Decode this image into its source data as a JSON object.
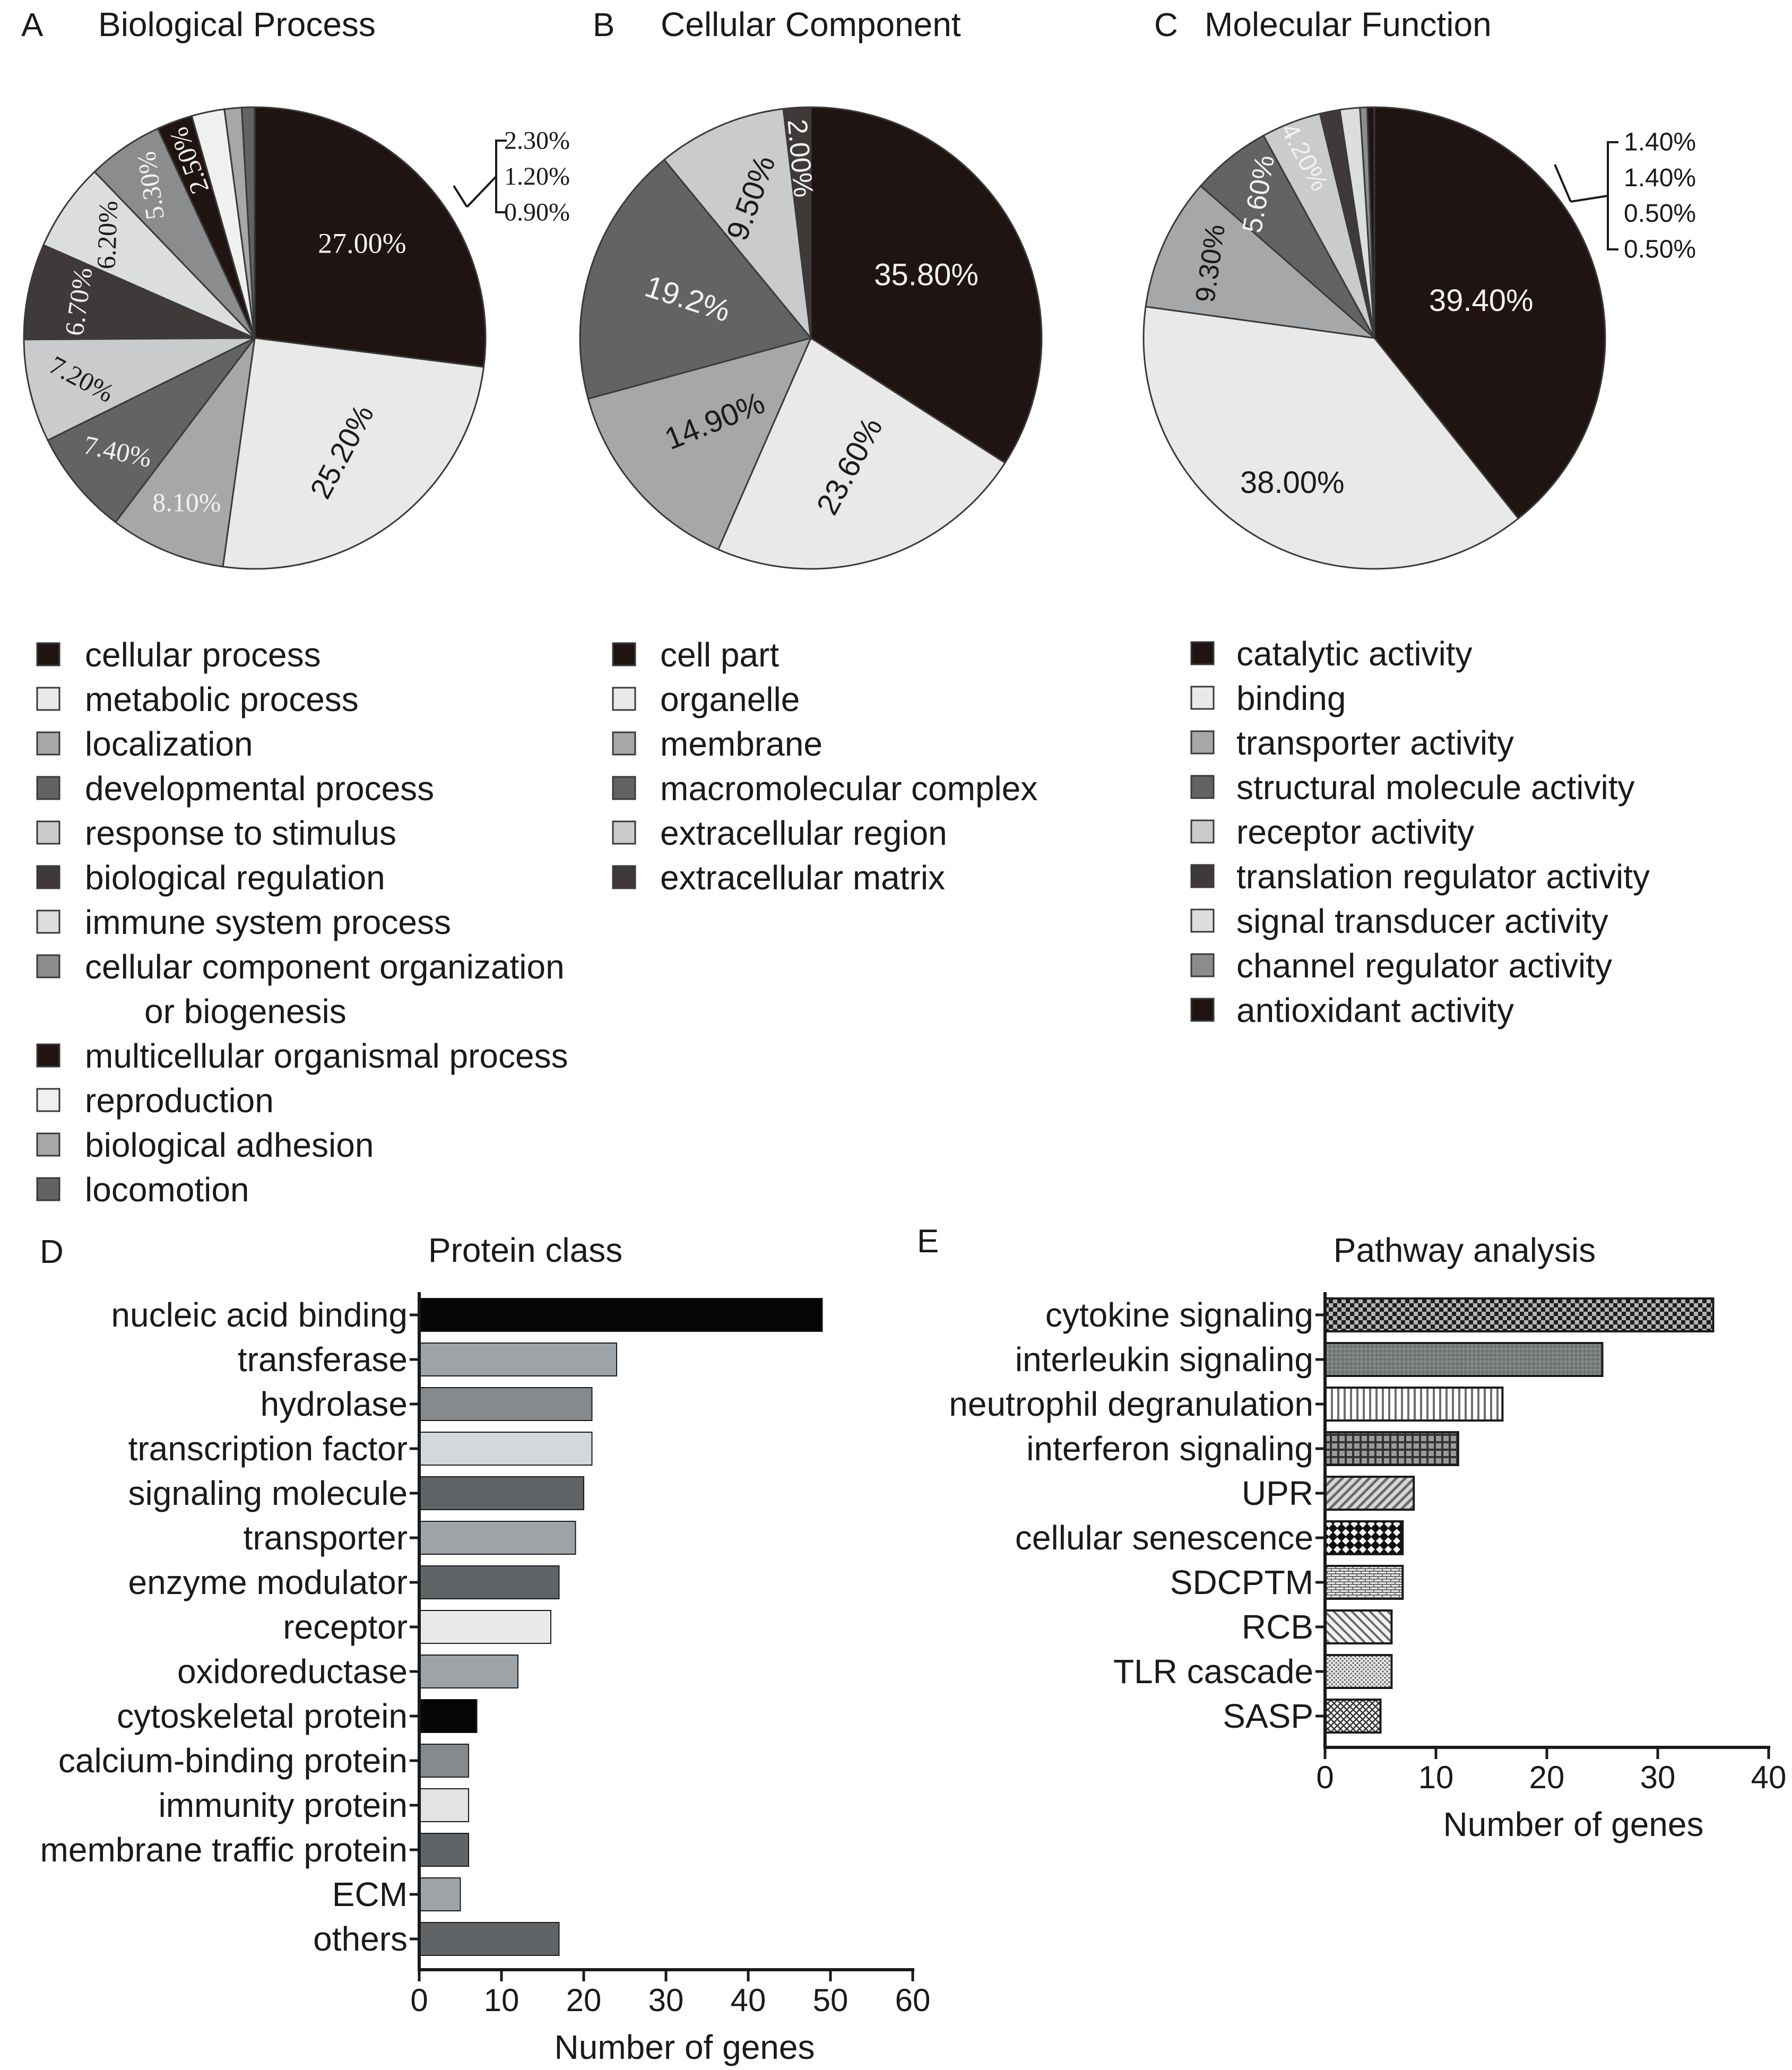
{
  "chart_data": [
    {
      "id": "A",
      "panel_label": "A",
      "type": "pie",
      "title": "Biological Process",
      "slices": [
        {
          "label": "cellular process",
          "value": 27.0,
          "text": "27.00%",
          "color": "#1f1411"
        },
        {
          "label": "metabolic process",
          "value": 25.2,
          "text": "25.20%",
          "color": "#e9e9ea"
        },
        {
          "label": "localization",
          "value": 8.1,
          "text": "8.10%",
          "color": "#a5a7a8"
        },
        {
          "label": "developmental process",
          "value": 7.4,
          "text": "7.40%",
          "color": "#616364"
        },
        {
          "label": "response to stimulus",
          "value": 7.2,
          "text": "7.20%",
          "color": "#c9cbcc"
        },
        {
          "label": "biological regulation",
          "value": 6.7,
          "text": "6.70%",
          "color": "#3f3a39"
        },
        {
          "label": "immune system process",
          "value": 6.2,
          "text": "6.20%",
          "color": "#dcddde"
        },
        {
          "label": "cellular component organization",
          "label2": "or biogenesis",
          "value": 5.3,
          "text": "5.30%",
          "color": "#8a8c8d"
        },
        {
          "label": "multicellular organismal process",
          "value": 2.5,
          "text": "2.50%",
          "color": "#1f1411"
        },
        {
          "label": "reproduction",
          "value": 2.3,
          "text": "2.30%",
          "color": "#f0f0f0"
        },
        {
          "label": "biological adhesion",
          "value": 1.2,
          "text": "1.20%",
          "color": "#a5a7a8"
        },
        {
          "label": "locomotion",
          "value": 0.9,
          "text": "0.90%",
          "color": "#616364"
        }
      ]
    },
    {
      "id": "B",
      "panel_label": "B",
      "type": "pie",
      "title": "Cellular Component",
      "slices": [
        {
          "label": "cell part",
          "value": 35.8,
          "text": "35.80%",
          "color": "#1f1411"
        },
        {
          "label": "organelle",
          "value": 23.6,
          "text": "23.60%",
          "color": "#e9e9ea"
        },
        {
          "label": "membrane",
          "value": 14.9,
          "text": "14.90%",
          "color": "#a5a7a8"
        },
        {
          "label": "macromolecular complex",
          "value": 19.2,
          "text": "19.2%",
          "color": "#616364"
        },
        {
          "label": "extracellular region",
          "value": 9.5,
          "text": "9.50%",
          "color": "#c9cbcc"
        },
        {
          "label": "extracellular matrix",
          "value": 2.0,
          "text": "2.00%",
          "color": "#3f3a39"
        }
      ]
    },
    {
      "id": "C",
      "panel_label": "C",
      "type": "pie",
      "title": "Molecular Function",
      "slices": [
        {
          "label": "catalytic activity",
          "value": 39.4,
          "text": "39.40%",
          "color": "#1f1411"
        },
        {
          "label": "binding",
          "value": 38.0,
          "text": "38.00%",
          "color": "#e9e9ea"
        },
        {
          "label": "transporter activity",
          "value": 9.3,
          "text": "9.30%",
          "color": "#a5a7a8"
        },
        {
          "label": "structural molecule activity",
          "value": 5.6,
          "text": "5.60%",
          "color": "#616364"
        },
        {
          "label": "receptor activity",
          "value": 4.2,
          "text": "4.20%",
          "color": "#c9cbcc"
        },
        {
          "label": "translation regulator activity",
          "value": 1.4,
          "text": "1.40%",
          "color": "#3f3a39"
        },
        {
          "label": "signal transducer activity",
          "value": 1.4,
          "text": "1.40%",
          "color": "#dcddde"
        },
        {
          "label": "channel regulator activity",
          "value": 0.5,
          "text": "0.50%",
          "color": "#8a8c8d"
        },
        {
          "label": "antioxidant activity",
          "value": 0.5,
          "text": "0.50%",
          "color": "#1f1411"
        }
      ]
    },
    {
      "id": "D",
      "panel_label": "D",
      "type": "bar",
      "orientation": "horizontal",
      "title": "Protein class",
      "xlabel": "Number of genes",
      "xlim": [
        0,
        60
      ],
      "xticks": [
        0,
        10,
        20,
        30,
        40,
        50,
        60
      ],
      "categories": [
        "nucleic acid binding",
        "transferase",
        "hydrolase",
        "transcription factor",
        "signaling molecule",
        "transporter",
        "enzyme modulator",
        "receptor",
        "oxidoreductase",
        "cytoskeletal protein",
        "calcium-binding protein",
        "immunity protein",
        "membrane traffic protein",
        "ECM",
        "others"
      ],
      "values": [
        49,
        24,
        21,
        21,
        20,
        19,
        17,
        16,
        12,
        7,
        6,
        6,
        6,
        5,
        17
      ],
      "colors": [
        "#050505",
        "#9ea3a7",
        "#868a8c",
        "#d5d8da",
        "#606466",
        "#9ea3a7",
        "#606466",
        "#e8eaeb",
        "#9ea3a7",
        "#050505",
        "#868a8c",
        "#e1e3e5",
        "#606466",
        "#9ea3a7",
        "#606466"
      ]
    },
    {
      "id": "E",
      "panel_label": "E",
      "type": "bar",
      "orientation": "horizontal",
      "title": "Pathway analysis",
      "xlabel": "Number of genes",
      "xlim": [
        0,
        40
      ],
      "xticks": [
        0,
        10,
        20,
        30,
        40
      ],
      "categories": [
        "cytokine signaling",
        "interleukin signaling",
        "neutrophil degranulation",
        "interferon signaling",
        "UPR",
        "cellular senescence",
        "SDCPTM",
        "RCB",
        "TLR cascade",
        "SASP"
      ],
      "values": [
        35,
        25,
        16,
        12,
        8,
        7,
        7,
        6,
        6,
        5
      ],
      "fills": [
        "pat-check",
        "pat-graydots",
        "pat-vlines",
        "pat-grid",
        "pat-diag",
        "pat-diamond",
        "pat-bricks",
        "pat-bdiag",
        "pat-dots",
        "pat-cross"
      ]
    }
  ]
}
